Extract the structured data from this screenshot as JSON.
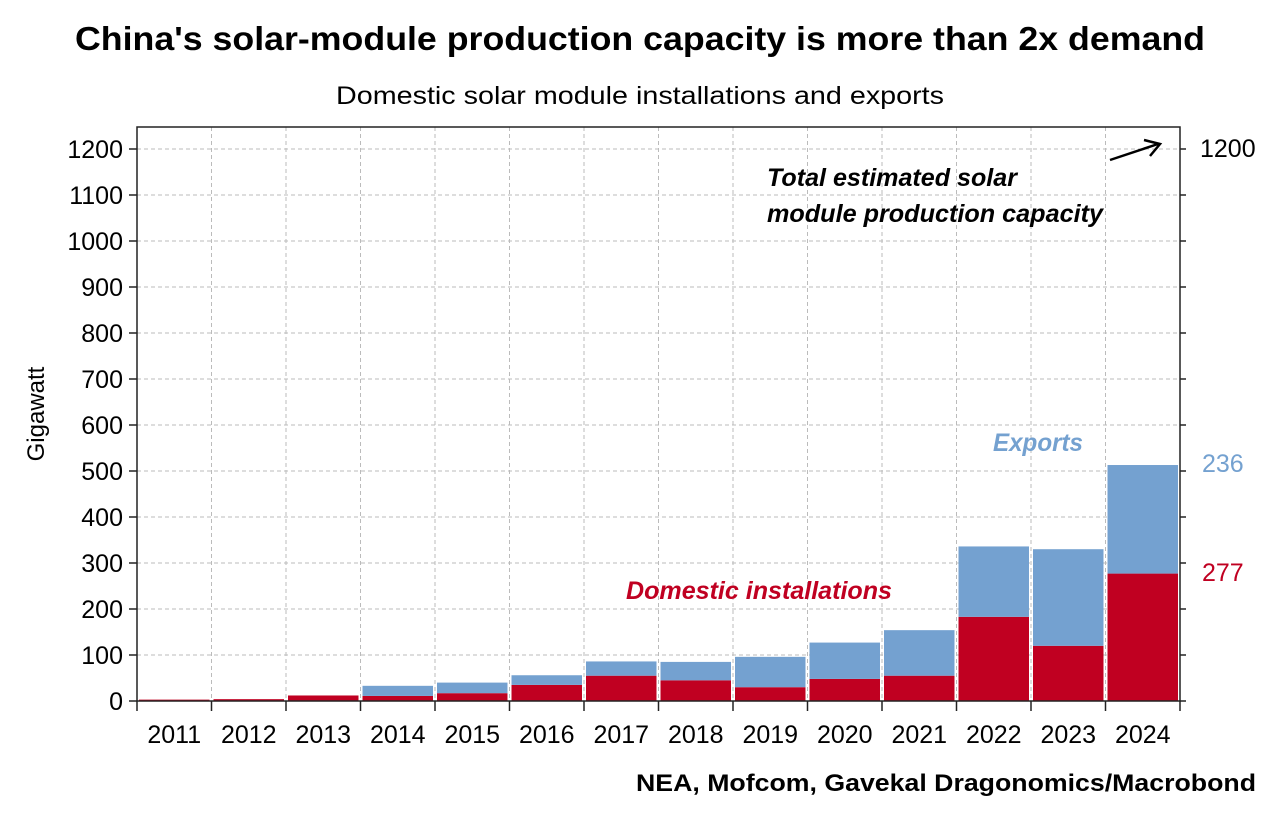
{
  "chart_data": {
    "type": "bar",
    "stacked": true,
    "title": "China's solar-module production capacity is more than 2x demand",
    "subtitle": "Domestic solar module installations and exports",
    "ylabel": "Gigawatt",
    "xlabel": "",
    "ylim": [
      0,
      1200
    ],
    "yticks": [
      0,
      100,
      200,
      300,
      400,
      500,
      600,
      700,
      800,
      900,
      1000,
      1100,
      1200
    ],
    "grid": true,
    "categories": [
      "2011",
      "2012",
      "2013",
      "2014",
      "2015",
      "2016",
      "2017",
      "2018",
      "2019",
      "2020",
      "2021",
      "2022",
      "2023",
      "2024"
    ],
    "series": [
      {
        "name": "Domestic installations",
        "color": "#c00021",
        "values": [
          3,
          4,
          12,
          11,
          17,
          35,
          55,
          45,
          30,
          48,
          55,
          183,
          120,
          277
        ]
      },
      {
        "name": "Exports",
        "color": "#74a1d0",
        "values": [
          0,
          0,
          0,
          22,
          23,
          21,
          31,
          40,
          66,
          79,
          99,
          153,
          210,
          236
        ]
      }
    ],
    "annotations": {
      "capacity_label": "Total estimated solar module production capacity",
      "capacity_line1": "Total estimated solar",
      "capacity_line2": "module production capacity",
      "capacity_value": "1200",
      "exports_value": "236",
      "domestic_value": "277"
    },
    "source": "NEA, Mofcom, Gavekal Dragonomics/Macrobond"
  }
}
